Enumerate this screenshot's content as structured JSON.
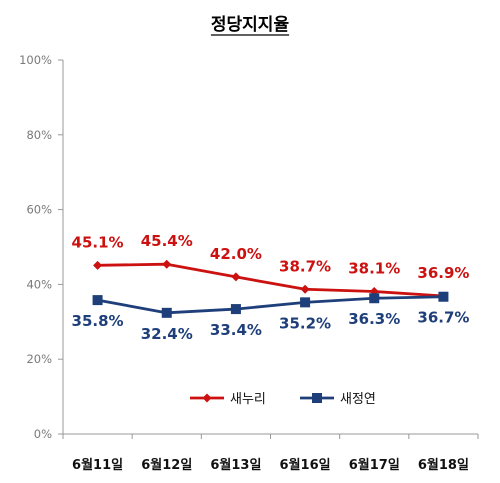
{
  "chart_data": {
    "type": "line",
    "title": "정당지지율",
    "categories": [
      "6월11일",
      "6월12일",
      "6월13일",
      "6월16일",
      "6월17일",
      "6월18일"
    ],
    "ylim": [
      0,
      100
    ],
    "yticks": [
      0,
      20,
      40,
      60,
      80,
      100
    ],
    "ytick_labels": [
      "0%",
      "20%",
      "40%",
      "60%",
      "80%",
      "100%"
    ],
    "xlabel": "",
    "ylabel": "",
    "grid": false,
    "legend_position": "bottom",
    "series": [
      {
        "name": "새누리",
        "color": "#cc1111",
        "marker": "diamond",
        "values": [
          45.1,
          45.4,
          42.0,
          38.7,
          38.1,
          36.9
        ],
        "labels": [
          "45.1%",
          "45.4%",
          "42.0%",
          "38.7%",
          "38.1%",
          "36.9%"
        ]
      },
      {
        "name": "새정연",
        "color": "#1f3f7a",
        "marker": "square",
        "values": [
          35.8,
          32.4,
          33.4,
          35.2,
          36.3,
          36.7
        ],
        "labels": [
          "35.8%",
          "32.4%",
          "33.4%",
          "35.2%",
          "36.3%",
          "36.7%"
        ]
      }
    ]
  }
}
